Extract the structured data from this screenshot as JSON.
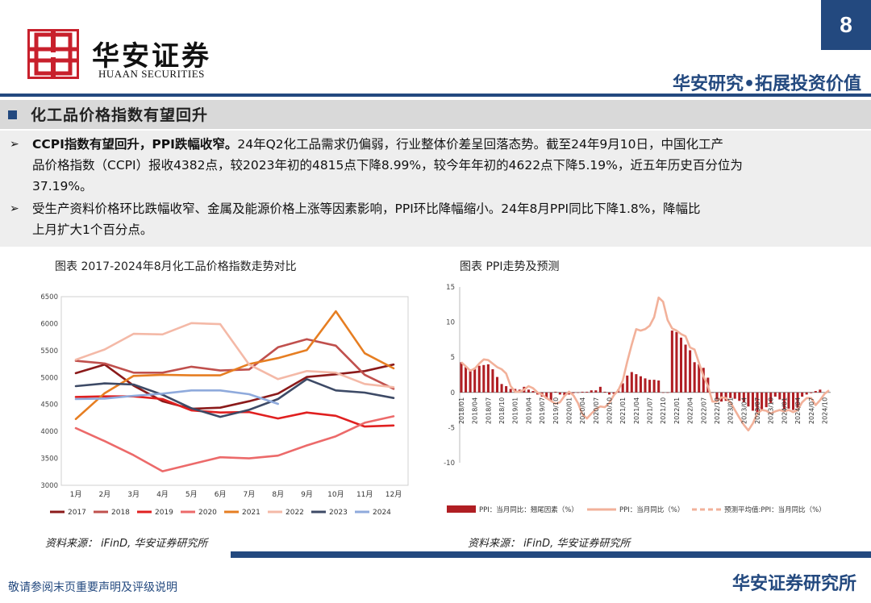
{
  "header": {
    "logo_cn": "华安证券",
    "logo_en": "HUAAN SECURITIES",
    "page_number": "8",
    "slogan": "华安研究•拓展投资价值"
  },
  "section": {
    "title": "化工品价格指数有望回升"
  },
  "bullets": [
    {
      "bold": "CCPI指数有望回升，PPI跌幅收窄。",
      "line1_rest": "24年Q2化工品需求仍偏弱，行业整体价差呈回落态势。截至24年9月10日，中国化工产",
      "line2": "品价格指数（CCPI）报收4382点，较2023年初的4815点下降8.99%，较今年年初的4622点下降5.19%，近五年历史百分位为",
      "line3": "37.19%。"
    },
    {
      "line1": "受生产资料价格环比跌幅收窄、金属及能源价格上涨等因素影响，PPI环比降幅缩小。24年8月PPI同比下降1.8%，降幅比",
      "line2": "上月扩大1个百分点。"
    }
  ],
  "footer": {
    "disclaimer": "敬请参阅末页重要声明及评级说明",
    "brand": "华安证券研究所"
  },
  "chart_data": [
    {
      "type": "line",
      "title": "图表 2017-2024年8月化工品价格指数走势对比",
      "source": "资料来源：  iFinD, 华安证券研究所",
      "categories": [
        "1月",
        "2月",
        "3月",
        "4月",
        "5月",
        "6月",
        "7月",
        "8月",
        "9月",
        "10月",
        "11月",
        "12月"
      ],
      "ylim": [
        3000,
        6500
      ],
      "yticks": [
        3000,
        3500,
        4000,
        4500,
        5000,
        5500,
        6000,
        6500
      ],
      "legend_position": "bottom",
      "series": [
        {
          "name": "2017",
          "color": "#8b1a1a",
          "values": [
            5080,
            5240,
            4850,
            4560,
            4420,
            4440,
            4560,
            4700,
            5010,
            5060,
            5120,
            5240
          ]
        },
        {
          "name": "2018",
          "color": "#c0504d",
          "values": [
            5310,
            5260,
            5090,
            5090,
            5200,
            5130,
            5150,
            5560,
            5710,
            5590,
            5050,
            4790
          ]
        },
        {
          "name": "2019",
          "color": "#e02020",
          "values": [
            4640,
            4650,
            4650,
            4600,
            4390,
            4350,
            4360,
            4240,
            4350,
            4290,
            4090,
            4110
          ]
        },
        {
          "name": "2020",
          "color": "#ec6a6a",
          "values": [
            4060,
            3820,
            3560,
            3260,
            3390,
            3520,
            3500,
            3550,
            3740,
            3910,
            4160,
            4280
          ]
        },
        {
          "name": "2021",
          "color": "#e67e22",
          "values": [
            4230,
            4710,
            5030,
            5050,
            5040,
            5040,
            5250,
            5360,
            5510,
            6230,
            5450,
            5170
          ]
        },
        {
          "name": "2022",
          "color": "#f4b9a7",
          "values": [
            5330,
            5520,
            5810,
            5800,
            6010,
            5990,
            5240,
            4970,
            5120,
            5090,
            4880,
            4820
          ]
        },
        {
          "name": "2023",
          "color": "#3d4a66",
          "values": [
            4840,
            4890,
            4870,
            4680,
            4430,
            4270,
            4400,
            4600,
            4970,
            4760,
            4720,
            4620
          ]
        },
        {
          "name": "2024",
          "color": "#8faadc",
          "values": [
            4600,
            4610,
            4660,
            4700,
            4760,
            4760,
            4690,
            4510,
            null,
            null,
            null,
            null
          ]
        }
      ]
    },
    {
      "type": "bar+line",
      "title": "图表 PPI走势及预测",
      "source": "资料来源：  iFinD, 华安证券研究所",
      "ylim": [
        -10,
        15
      ],
      "yticks": [
        -10,
        -5,
        0,
        5,
        10,
        15
      ],
      "x_tick_labels": [
        "2018/01",
        "2018/04",
        "2018/07",
        "2018/10",
        "2019/01",
        "2019/04",
        "2019/07",
        "2019/10",
        "2020/01",
        "2020/04",
        "2020/07",
        "2020/10",
        "2021/01",
        "2021/04",
        "2021/07",
        "2021/10",
        "2022/01",
        "2022/04",
        "2022/07",
        "2022/10",
        "2023/01",
        "2023/04",
        "2023/07",
        "2023/10",
        "2024/01",
        "2024/04",
        "2024/07",
        "2024/10"
      ],
      "legend_position": "bottom",
      "series": [
        {
          "name": "PPI：当月同比：翘尾因素（%）",
          "kind": "bar",
          "color": "#b01e23",
          "values": [
            4.3,
            3.6,
            3.3,
            3.5,
            3.8,
            3.9,
            4.0,
            3.3,
            2.2,
            1.2,
            0.9,
            0.5,
            0.5,
            0.4,
            0.8,
            0.4,
            0.2,
            -0.3,
            -0.6,
            -0.9,
            -1.2,
            0.1,
            -0.3,
            -0.4,
            -0.3,
            -0.1,
            0.0,
            0.1,
            0.1,
            0.3,
            0.3,
            0.8,
            0.1,
            -0.3,
            -0.2,
            0.4,
            1.3,
            2.4,
            2.9,
            2.6,
            2.3,
            2.0,
            1.8,
            1.8,
            1.7,
            0.0,
            0.0,
            8.8,
            8.6,
            7.8,
            6.8,
            6.0,
            4.3,
            4.0,
            3.5,
            2.1,
            0.0,
            -1.0,
            -1.3,
            -1.2,
            -0.8,
            -0.9,
            -1.2,
            -1.4,
            -2.0,
            -2.6,
            -2.8,
            -2.5,
            -2.1,
            -1.5,
            -0.6,
            -1.0,
            -2.4,
            -2.3,
            -2.5,
            -2.2,
            -0.6,
            -0.3,
            -0.1,
            0.2,
            0.4
          ]
        },
        {
          "name": "PPI：当月同比（%）",
          "kind": "line",
          "color": "#f2b19a",
          "values": [
            4.3,
            3.7,
            3.1,
            3.4,
            4.1,
            4.7,
            4.6,
            4.1,
            3.6,
            3.3,
            2.7,
            0.9,
            0.1,
            0.1,
            0.4,
            0.9,
            0.6,
            0.0,
            -0.3,
            -0.8,
            -1.2,
            -1.6,
            -1.4,
            -0.5,
            0.1,
            -0.4,
            -1.5,
            -3.1,
            -3.7,
            -3.0,
            -2.4,
            -2.0,
            -2.1,
            -1.5,
            -0.4,
            0.3,
            1.7,
            4.4,
            6.8,
            9.0,
            8.8,
            9.0,
            9.5,
            10.7,
            13.5,
            12.9,
            10.3,
            9.1,
            8.8,
            8.3,
            8.0,
            6.4,
            6.1,
            4.2,
            2.3,
            0.9,
            -1.3,
            -1.3,
            -0.7,
            -0.8,
            -1.4,
            -2.5,
            -3.6,
            -4.6,
            -5.4,
            -4.4,
            -3.0,
            -2.5,
            -2.6,
            -3.0,
            -2.7,
            -2.5,
            -2.7,
            -2.5,
            -2.8,
            -2.5,
            -1.4,
            -0.8,
            -0.8,
            -1.8,
            -1.1,
            -0.2,
            0.3
          ]
        },
        {
          "name": "预测平均值:PPI：当月同比（%）",
          "kind": "dashed-line",
          "color": "#f2b19a"
        }
      ]
    }
  ]
}
